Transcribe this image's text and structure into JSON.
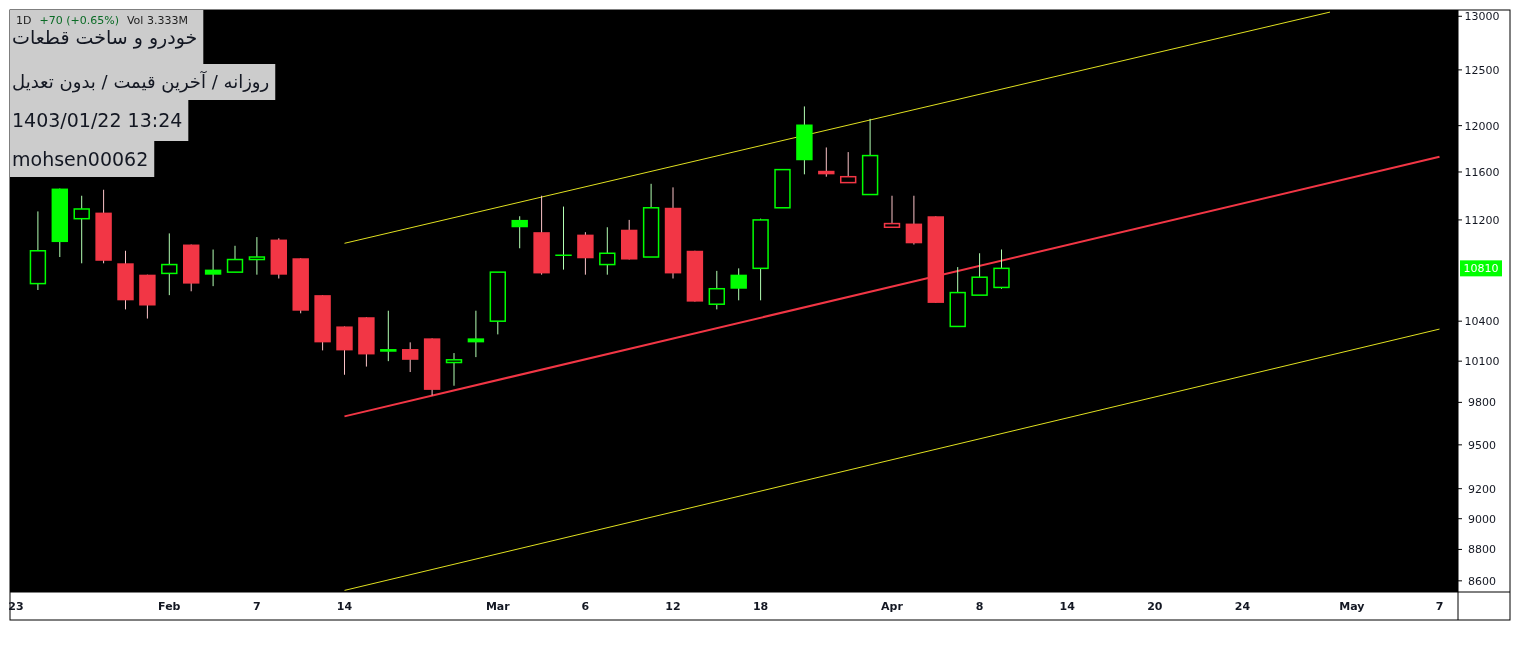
{
  "chart_data": {
    "type": "candlestick",
    "title": "خودرو و ساخت قطعات",
    "subtitle": "روزانه / آخرین قیمت / بدون تعدیل",
    "annotations": [
      "1D",
      "+70 (+0.65%)",
      "Vol 3.333M",
      "1403/01/22 13:24",
      "mohsen00062",
      {
        "text": "10810",
        "y": 10810
      }
    ],
    "categories": [
      "23",
      null,
      null,
      null,
      null,
      null,
      null,
      "Feb",
      null,
      null,
      null,
      "7",
      null,
      null,
      null,
      "14",
      null,
      null,
      null,
      null,
      null,
      null,
      "Mar",
      null,
      null,
      null,
      "6",
      null,
      null,
      null,
      "12",
      null,
      null,
      null,
      "18",
      null,
      null,
      null,
      null,
      null,
      "Apr",
      null,
      null,
      null,
      "8",
      null,
      null,
      null,
      "14",
      null,
      null,
      null,
      "20",
      null,
      null,
      null,
      "24",
      null,
      null,
      null,
      null,
      "May",
      null,
      null,
      null,
      "7"
    ],
    "ohlc": [
      null,
      [
        10690,
        11270,
        10640,
        10950
      ],
      [
        11460,
        11460,
        10900,
        11020
      ],
      [
        11210,
        11400,
        10850,
        11290
      ],
      [
        11260,
        11450,
        10850,
        10870
      ],
      [
        10850,
        10950,
        10490,
        10560
      ],
      [
        10760,
        10760,
        10420,
        10520
      ],
      [
        10770,
        11090,
        10600,
        10840
      ],
      [
        11000,
        11000,
        10630,
        10690
      ],
      [
        10800,
        10960,
        10670,
        10760
      ],
      [
        10780,
        10990,
        10780,
        10880
      ],
      [
        10880,
        11060,
        10760,
        10900
      ],
      [
        11040,
        11050,
        10730,
        10760
      ],
      [
        10890,
        10890,
        10460,
        10480
      ],
      [
        10600,
        10600,
        10180,
        10240
      ],
      [
        10360,
        10360,
        10000,
        10180
      ],
      [
        10430,
        10430,
        10060,
        10150
      ],
      [
        10190,
        10480,
        10100,
        10170
      ],
      [
        10190,
        10240,
        10020,
        10110
      ],
      [
        10270,
        10270,
        9850,
        9890
      ],
      [
        10090,
        10160,
        9920,
        10110
      ],
      [
        10270,
        10480,
        10130,
        10240
      ],
      [
        10400,
        10780,
        10300,
        10780
      ],
      [
        11200,
        11230,
        10970,
        11140
      ],
      [
        11100,
        11400,
        10760,
        10770
      ],
      [
        10920,
        11310,
        10800,
        10910
      ],
      [
        11080,
        11100,
        10760,
        10890
      ],
      [
        10840,
        11140,
        10760,
        10930
      ],
      [
        11120,
        11200,
        10880,
        10880
      ],
      [
        10900,
        11500,
        10900,
        11300
      ],
      [
        11300,
        11470,
        10730,
        10770
      ],
      [
        10950,
        10950,
        10550,
        10550
      ],
      [
        10530,
        10790,
        10490,
        10650
      ],
      [
        10760,
        10810,
        10560,
        10650
      ],
      [
        10810,
        11210,
        10560,
        11200
      ],
      [
        11300,
        11620,
        11300,
        11620
      ],
      [
        12010,
        12170,
        11580,
        11700
      ],
      [
        11610,
        11810,
        11560,
        11580
      ],
      [
        11510,
        11770,
        11510,
        11560
      ],
      [
        11410,
        12060,
        11410,
        11740
      ],
      [
        11140,
        11400,
        11140,
        11170
      ],
      [
        11170,
        11400,
        11000,
        11010
      ],
      [
        11230,
        11230,
        10540,
        10540
      ],
      [
        10360,
        10820,
        10360,
        10620
      ],
      [
        10600,
        10930,
        10600,
        10740
      ],
      [
        10660,
        10960,
        10650,
        10810
      ],
      null,
      null,
      null,
      null,
      null,
      null,
      null,
      null,
      null,
      null,
      null,
      null,
      null,
      null,
      null,
      null,
      null,
      null,
      null,
      null
    ],
    "colors": [
      null,
      "#00ff00",
      "#00ff00",
      "#00ff00",
      "#f23645",
      "#f23645",
      "#f23645",
      "#00ff00",
      "#f23645",
      "#00ff00",
      "#00ff00",
      "#00ff00",
      "#f23645",
      "#f23645",
      "#f23645",
      "#f23645",
      "#f23645",
      "#00ff00",
      "#f23645",
      "#f23645",
      "#00ff00",
      "#00ff00",
      "#00ff00",
      "#00ff00",
      "#f23645",
      "#00ff00",
      "#f23645",
      "#00ff00",
      "#f23645",
      "#00ff00",
      "#f23645",
      "#f23645",
      "#00ff00",
      "#00ff00",
      "#00ff00",
      "#00ff00",
      "#00ff00",
      "#f23645",
      "#f23645",
      "#00ff00",
      "#f23645",
      "#f23645",
      "#f23645",
      "#00ff00",
      "#00ff00",
      "#00ff00",
      null,
      null,
      null,
      null,
      null,
      null,
      null,
      null,
      null,
      null,
      null,
      null,
      null,
      null,
      null,
      null,
      null,
      null,
      null,
      null
    ],
    "series": [
      {
        "type": "line",
        "color": "#e0e020",
        "values": [
          null,
          null,
          null,
          null,
          null,
          null,
          null,
          null,
          null,
          null,
          null,
          null,
          null,
          null,
          null,
          11010,
          null,
          null,
          null,
          null,
          null,
          null,
          null,
          null,
          null,
          null,
          null,
          null,
          null,
          null,
          null,
          null,
          null,
          null,
          null,
          null,
          null,
          null,
          null,
          null,
          null,
          null,
          null,
          null,
          null,
          null,
          null,
          null,
          null,
          null,
          null,
          null,
          null,
          null,
          null,
          null,
          null,
          null,
          null,
          null,
          13040,
          null,
          null,
          null,
          null,
          null
        ]
      },
      {
        "type": "line",
        "color": "#f23645",
        "values": [
          null,
          null,
          null,
          null,
          null,
          null,
          null,
          null,
          null,
          null,
          null,
          null,
          null,
          null,
          null,
          9700,
          null,
          null,
          null,
          null,
          null,
          null,
          null,
          null,
          null,
          null,
          null,
          null,
          null,
          null,
          null,
          null,
          null,
          null,
          null,
          null,
          null,
          null,
          null,
          null,
          null,
          null,
          null,
          null,
          null,
          null,
          null,
          null,
          null,
          null,
          null,
          null,
          null,
          null,
          null,
          null,
          null,
          null,
          null,
          null,
          null,
          null,
          null,
          null,
          null,
          11730
        ]
      },
      {
        "type": "line",
        "color": "#e0e020",
        "values": [
          null,
          null,
          null,
          null,
          null,
          null,
          null,
          null,
          null,
          null,
          null,
          null,
          null,
          null,
          null,
          8540,
          null,
          null,
          null,
          null,
          null,
          null,
          null,
          null,
          null,
          null,
          null,
          null,
          null,
          null,
          null,
          null,
          null,
          null,
          null,
          null,
          null,
          null,
          null,
          null,
          null,
          null,
          null,
          null,
          null,
          null,
          null,
          null,
          null,
          null,
          null,
          null,
          null,
          null,
          null,
          null,
          null,
          null,
          null,
          null,
          null,
          null,
          null,
          null,
          null,
          10340
        ]
      }
    ],
    "log": "y",
    "ylim": [
      8530,
      13060
    ],
    "yticks": [
      8600,
      8800,
      9000,
      9200,
      9500,
      9800,
      10100,
      10400,
      11200,
      11600,
      12000,
      12500,
      13000
    ]
  }
}
